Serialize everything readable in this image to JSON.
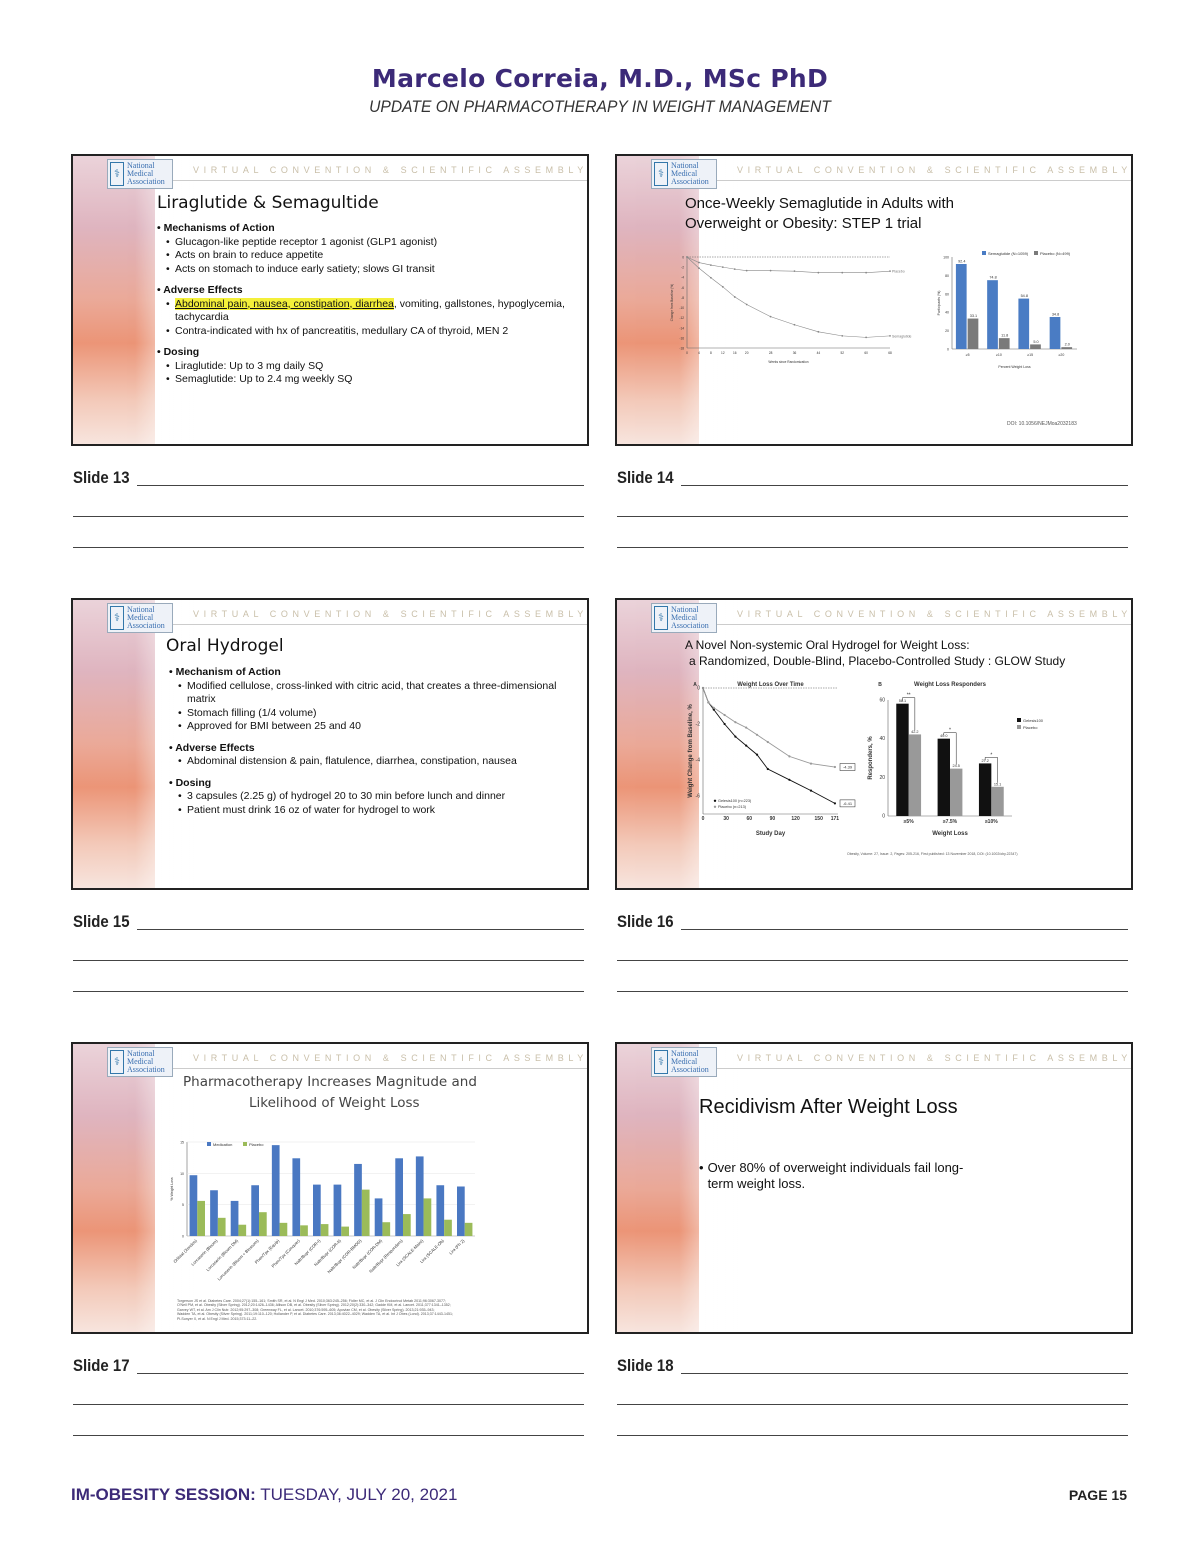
{
  "header": {
    "name": "Marcelo Correia, M.D., MSc PhD",
    "subtitle": "UPDATE ON PHARMACOTHERAPY IN WEIGHT MANAGEMENT"
  },
  "common": {
    "logo_text": [
      "National",
      "Medical",
      "Association"
    ],
    "convention": "VIRTUAL CONVENTION & SCIENTIFIC ASSEMBLY"
  },
  "slides": [
    {
      "label": "Slide 13",
      "title": "Liraglutide & Semagultide",
      "sections": [
        {
          "heading": "Mechanisms of Action",
          "items": [
            "Glucagon-like peptide receptor 1 agonist (GLP1 agonist)",
            "Acts on brain to reduce appetite",
            "Acts on stomach to induce early satiety; slows GI transit"
          ]
        },
        {
          "heading": "Adverse Effects",
          "highlight": "Abdominal pain, nausea, constipation, diarrhea",
          "items": [
            ", vomiting,  gallstones, hypoglycemia, tachycardia",
            "Contra-indicated with hx of pancreatitis, medullary CA of thyroid, MEN 2"
          ]
        },
        {
          "heading": "Dosing",
          "items": [
            "Liraglutide: Up to 3 mg daily SQ",
            "Semaglutide: Up to 2.4 mg weekly SQ"
          ]
        }
      ]
    },
    {
      "label": "Slide 14",
      "title": "Once-Weekly Semaglutide in Adults with Overweight or Obesity: STEP 1 trial",
      "citation": "DOI: 10.1056/NEJMoa2032183"
    },
    {
      "label": "Slide 15",
      "title": "Oral Hydrogel",
      "sections": [
        {
          "heading": "Mechanism of Action",
          "items": [
            "Modified cellulose, cross-linked with citric acid, that creates a three-dimensional matrix",
            "Stomach filling (1/4 volume)",
            "Approved for BMI between 25 and 40"
          ]
        },
        {
          "heading": "Adverse Effects",
          "items": [
            "Abdominal distension & pain, flatulence, diarrhea, constipation, nausea"
          ]
        },
        {
          "heading": "Dosing",
          "items": [
            "3 capsules (2.25 g) of hydrogel 20 to 30 min before lunch and dinner",
            "Patient must drink 16 oz of water for hydrogel to work"
          ]
        }
      ]
    },
    {
      "label": "Slide 16",
      "title": "A Novel Non-systemic Oral Hydrogel for Weight Loss:",
      "title2": "a Randomized, Double-Blind, Placebo-Controlled Study : GLOW Study",
      "citation": "Obesity, Volume: 27, Issue: 2, Pages: 205-216, First published: 13 November 2018, DOI: (10.1002/oby.22347)"
    },
    {
      "label": "Slide 17",
      "title": "Pharmacotherapy Increases Magnitude and",
      "title2": "Likelihood of Weight Loss",
      "citation": [
        "Torgerson JS et al. Diabetes Care. 2004;27(1):155–161; Smith SR, et al. N Engl J Med. 2010;363:245–256; Fidler MC, et al. J Clin Endocrinol Metab 2011;96:3067-3077;",
        "O'Neil PM, et al. Obesity (Silver Spring). 2012;20:1426–1436; Allison DB, et al. Obesity (Silver Spring). 2012;20(2):330–342; Gadde KM, et al. Lancet. 2011;377:1341–1352;",
        "Garvey WT, et al. Am J Clin Nutr. 2012;95:297–308; Greenway FL, et al. Lancet. 2010;376:595–605; Apovian CM, et al. Obesity (Silver Spring). 2013;21:935–943;",
        "Wadden TA, et al. Obesity (Silver Spring). 2011;19:110–120; Hollander P, et al. Diabetes Care. 2013;36:4022–4029; Wadden TA, et al. Int J Obes (Lond). 2013;37:1443-1451;",
        "Pi-Sunyer X, et al. N Engl J Med. 2015;373:11–22."
      ]
    },
    {
      "label": "Slide 18",
      "title": "Recidivism After Weight Loss",
      "bullet": "Over 80% of overweight individuals fail long-term weight loss."
    }
  ],
  "chart_data": [
    {
      "id": "s14a",
      "type": "line",
      "xlabel": "Weeks since Randomization",
      "ylabel": "Change from Baseline (%)",
      "x": [
        0,
        4,
        8,
        12,
        16,
        20,
        28,
        36,
        44,
        52,
        60,
        68
      ],
      "xticks": [
        0,
        4,
        8,
        12,
        16,
        20,
        28,
        36,
        44,
        52,
        60,
        68
      ],
      "yticks": [
        0,
        -2,
        -4,
        -6,
        -8,
        -10,
        -12,
        -14,
        -16,
        -18
      ],
      "ylim": [
        -18,
        0
      ],
      "xlim": [
        0,
        68
      ],
      "series": [
        {
          "name": "Placebo",
          "values": [
            0,
            -1.1,
            -1.6,
            -2.0,
            -2.4,
            -2.7,
            -2.7,
            -2.8,
            -3.1,
            -3.1,
            -3.1,
            -2.8
          ],
          "color": "#888888"
        },
        {
          "name": "Semaglutide",
          "values": [
            0,
            -2.2,
            -4.1,
            -5.9,
            -7.9,
            -9.4,
            -11.8,
            -13.4,
            -14.8,
            -15.6,
            -15.9,
            -15.6
          ],
          "color": "#888888"
        }
      ]
    },
    {
      "id": "s14b",
      "type": "bar",
      "xlabel": "Percent Weight Loss",
      "ylabel": "Participants (%)",
      "categories": [
        "≥5",
        "≥10",
        "≥15",
        "≥20"
      ],
      "ylim": [
        0,
        100
      ],
      "yticks": [
        0,
        20,
        40,
        60,
        80,
        100
      ],
      "legend": "top-right",
      "series": [
        {
          "name": "Semaglutide (N=1059)",
          "values": [
            92.4,
            74.8,
            54.8,
            34.8
          ],
          "color": "#4a7cc4"
        },
        {
          "name": "Placebo (N=499)",
          "values": [
            33.1,
            11.8,
            5.0,
            2.0
          ],
          "color": "#7a7a7a"
        }
      ]
    },
    {
      "id": "s16a",
      "type": "line",
      "title": "Weight Loss Over Time",
      "panel": "A",
      "xlabel": "Study Day",
      "ylabel": "Weight Change from Baseline, %",
      "x": [
        0,
        7,
        14,
        28,
        42,
        56,
        70,
        84,
        112,
        140,
        171
      ],
      "xticks": [
        0,
        30,
        60,
        90,
        120,
        150,
        171
      ],
      "yticks": [
        0,
        -2,
        -4,
        -6
      ],
      "ylim": [
        -7,
        0
      ],
      "xlim": [
        0,
        175
      ],
      "series": [
        {
          "name": "Gelesis100 (n=223)",
          "values": [
            0,
            -0.8,
            -1.2,
            -2.0,
            -2.7,
            -3.2,
            -3.7,
            -4.5,
            -5.1,
            -5.7,
            -6.41
          ],
          "color": "#111111",
          "end_label": "-6.41"
        },
        {
          "name": "Placebo (n=213)",
          "values": [
            0,
            -0.8,
            -1.1,
            -1.5,
            -1.9,
            -2.2,
            -2.6,
            -3.0,
            -3.8,
            -4.2,
            -4.39
          ],
          "color": "#999999",
          "end_label": "-4.39"
        }
      ]
    },
    {
      "id": "s16b",
      "type": "bar",
      "title": "Weight Loss Responders",
      "panel": "B",
      "xlabel": "Weight Loss",
      "ylabel": "Responders, %",
      "categories": [
        "≥5%",
        "≥7.5%",
        "≥10%"
      ],
      "ylim": [
        0,
        60
      ],
      "yticks": [
        0,
        20,
        40,
        60
      ],
      "legend": "top-right",
      "series": [
        {
          "name": "Gelesis100",
          "values": [
            58.1,
            40.0,
            27.2
          ],
          "color": "#111111"
        },
        {
          "name": "Placebo",
          "values": [
            42.2,
            24.5,
            15.1
          ],
          "color": "#999999"
        }
      ],
      "significance": [
        "**",
        "*",
        "*"
      ]
    },
    {
      "id": "s17",
      "type": "bar",
      "ylabel": "% Weight Loss",
      "categories": [
        "Orlistat (Xendos)",
        "Lorcaserin (Bloom)",
        "Lorcaserin (Bloom DM)",
        "Lorcaserin (Bloom + Blossom)",
        "Phen/Tpx (Equip)",
        "Phen/Tpx (Conquer)",
        "Naltr/Bupr (COR-I)",
        "Naltr/Bupr (COR-II)",
        "Naltr/Bupr (COR-BMOD)",
        "Naltr/Bupr (COR-DM)",
        "Naltr/Bupr (Responders)",
        "Lira (SCALE-Maint)",
        "Lira (SCALE-Ob)",
        "Lira (Ph 2)"
      ],
      "ylim": [
        0,
        15
      ],
      "yticks": [
        0,
        5,
        10,
        15
      ],
      "legend": "top-left",
      "series": [
        {
          "name": "Medication",
          "values": [
            9.7,
            7.3,
            5.6,
            8.1,
            14.5,
            12.4,
            8.2,
            8.2,
            11.5,
            6.0,
            12.4,
            12.7,
            8.1,
            7.9
          ],
          "color": "#4a78c2"
        },
        {
          "name": "Placebo",
          "values": [
            5.6,
            2.9,
            1.8,
            3.8,
            2.1,
            1.7,
            1.9,
            1.5,
            7.4,
            2.2,
            3.5,
            6.0,
            2.6,
            2.1
          ],
          "color": "#9bbb59"
        }
      ]
    }
  ],
  "footer": {
    "session": "IM-OBESITY SESSION:",
    "date": "TUESDAY, JULY 20, 2021",
    "page": "PAGE 15"
  }
}
